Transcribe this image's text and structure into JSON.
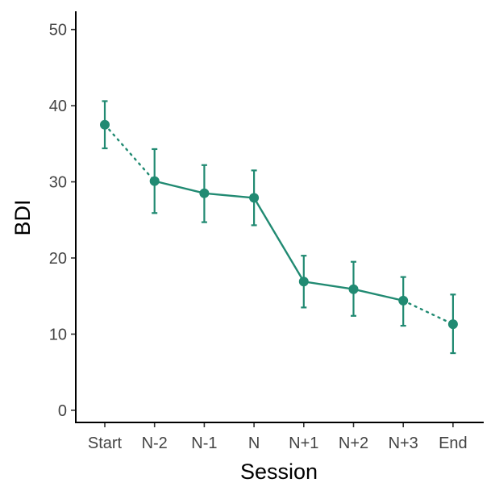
{
  "chart_data": {
    "type": "line",
    "categories": [
      "Start",
      "N-2",
      "N-1",
      "N",
      "N+1",
      "N+2",
      "N+3",
      "End"
    ],
    "series": [
      {
        "values": [
          37.5,
          30.1,
          28.5,
          27.9,
          16.9,
          15.9,
          14.4,
          11.3
        ],
        "error_low": [
          34.4,
          25.9,
          24.7,
          24.3,
          13.5,
          12.4,
          11.1,
          7.5
        ],
        "error_high": [
          40.6,
          34.3,
          32.2,
          31.5,
          20.3,
          19.5,
          17.5,
          15.2
        ],
        "segment_styles": [
          "dotted",
          "solid",
          "solid",
          "solid",
          "solid",
          "solid",
          "dotted"
        ],
        "color": "#218a72"
      }
    ],
    "xlabel": "Session",
    "ylabel": "BDI",
    "ylim": [
      -1.6,
      52.4
    ],
    "yticks": [
      0,
      10,
      20,
      30,
      40,
      50
    ],
    "grid": false,
    "legend": "none"
  }
}
